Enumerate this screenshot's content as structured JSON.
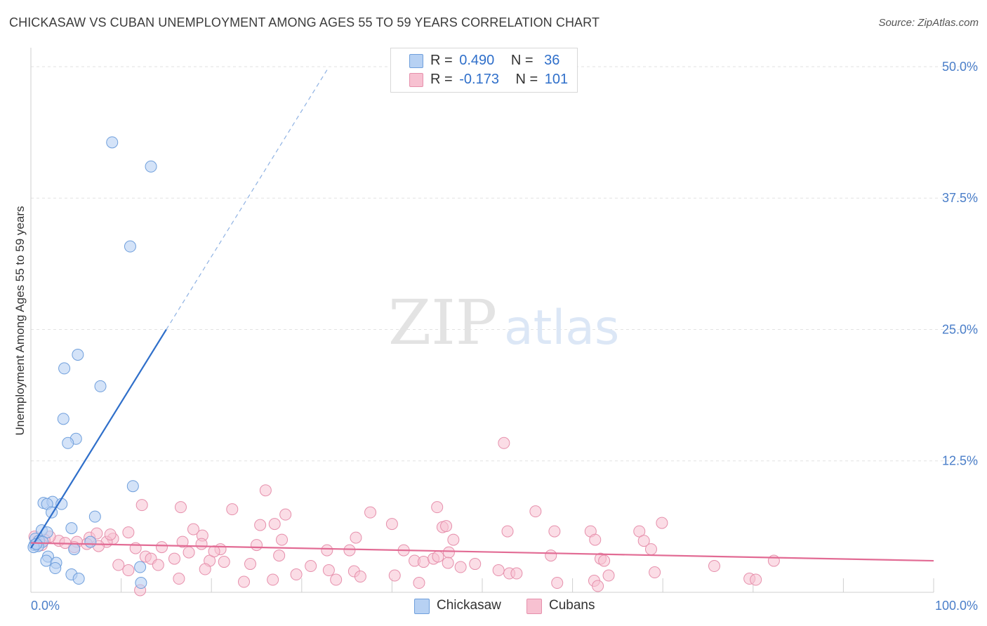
{
  "title": "CHICKASAW VS CUBAN UNEMPLOYMENT AMONG AGES 55 TO 59 YEARS CORRELATION CHART",
  "source": "Source: ZipAtlas.com",
  "watermark": {
    "zip": "ZIP",
    "atlas": "atlas"
  },
  "legend": {
    "rows": [
      {
        "r_label": "R =",
        "r_value": "0.490",
        "n_label": "N =",
        "n_value": "36"
      },
      {
        "r_label": "R =",
        "r_value": "-0.173",
        "n_label": "N =",
        "n_value": "101"
      }
    ]
  },
  "bottom_legend": [
    "Chickasaw",
    "Cubans"
  ],
  "colors": {
    "chickasaw_fill": "#b7d1f3",
    "chickasaw_stroke": "#6f9fdc",
    "chickasaw_line": "#2f6fca",
    "cubans_fill": "#f7c1d1",
    "cubans_stroke": "#e690ac",
    "cubans_line": "#e26b94",
    "grid": "#e2e2e2",
    "axis_label": "#4a7ec9"
  },
  "chart_data": {
    "type": "scatter",
    "title": "CHICKASAW VS CUBAN UNEMPLOYMENT AMONG AGES 55 TO 59 YEARS CORRELATION CHART",
    "xlabel": "",
    "ylabel": "Unemployment Among Ages 55 to 59 years",
    "xlim": [
      0,
      100
    ],
    "ylim": [
      0,
      51
    ],
    "x_tick_labels": [
      {
        "value": 0,
        "label": "0.0%"
      },
      {
        "value": 100,
        "label": "100.0%"
      }
    ],
    "y_tick_labels": [
      {
        "value": 12.5,
        "label": "12.5%"
      },
      {
        "value": 25,
        "label": "25.0%"
      },
      {
        "value": 37.5,
        "label": "37.5%"
      },
      {
        "value": 50,
        "label": "50.0%"
      }
    ],
    "series": [
      {
        "name": "Chickasaw",
        "R": 0.49,
        "N": 36,
        "trend": {
          "x0": 0,
          "y0": 4.2,
          "x_solid_end": 15,
          "x_dash_end": 33
        },
        "points": [
          [
            9,
            42.8
          ],
          [
            13.3,
            40.5
          ],
          [
            11,
            32.9
          ],
          [
            5.2,
            22.6
          ],
          [
            3.7,
            21.3
          ],
          [
            7.7,
            19.6
          ],
          [
            3.6,
            16.5
          ],
          [
            5,
            14.6
          ],
          [
            4.1,
            14.2
          ],
          [
            11.3,
            10.1
          ],
          [
            1.4,
            8.5
          ],
          [
            2.4,
            8.6
          ],
          [
            1.8,
            8.4
          ],
          [
            3.4,
            8.4
          ],
          [
            2.3,
            7.6
          ],
          [
            7.1,
            7.2
          ],
          [
            4.5,
            6.1
          ],
          [
            1.2,
            5.9
          ],
          [
            1.8,
            5.7
          ],
          [
            0.5,
            5.1
          ],
          [
            0.9,
            4.9
          ],
          [
            1.3,
            4.8
          ],
          [
            0.4,
            4.5
          ],
          [
            0.8,
            4.4
          ],
          [
            0.3,
            4.3
          ],
          [
            6.6,
            4.8
          ],
          [
            4.8,
            4.1
          ],
          [
            1.9,
            3.4
          ],
          [
            1.7,
            3.0
          ],
          [
            2.8,
            2.8
          ],
          [
            2.7,
            2.3
          ],
          [
            12.1,
            2.4
          ],
          [
            4.5,
            1.7
          ],
          [
            5.3,
            1.3
          ],
          [
            12.2,
            0.9
          ],
          [
            0.6,
            4.6
          ]
        ]
      },
      {
        "name": "Cubans",
        "R": -0.173,
        "N": 101,
        "trend": {
          "x0": 0,
          "y0": 4.7,
          "x1": 100,
          "y1": 3.0
        },
        "points": [
          [
            52.4,
            14.2
          ],
          [
            26,
            9.7
          ],
          [
            12.3,
            8.3
          ],
          [
            16.6,
            8.1
          ],
          [
            22.3,
            7.9
          ],
          [
            37.6,
            7.6
          ],
          [
            45,
            8.1
          ],
          [
            55.9,
            7.7
          ],
          [
            28.2,
            7.4
          ],
          [
            40,
            6.5
          ],
          [
            25.4,
            6.4
          ],
          [
            27,
            6.5
          ],
          [
            45.6,
            6.2
          ],
          [
            18,
            6.0
          ],
          [
            19,
            5.4
          ],
          [
            10.8,
            5.7
          ],
          [
            52.8,
            5.8
          ],
          [
            58,
            5.8
          ],
          [
            62,
            5.8
          ],
          [
            67.4,
            5.8
          ],
          [
            69.9,
            6.6
          ],
          [
            46,
            6.3
          ],
          [
            46.8,
            5.0
          ],
          [
            36,
            5.2
          ],
          [
            27.8,
            5.0
          ],
          [
            16.8,
            4.8
          ],
          [
            18.9,
            4.6
          ],
          [
            25,
            4.5
          ],
          [
            9.1,
            5.1
          ],
          [
            8.4,
            4.8
          ],
          [
            6.5,
            5.2
          ],
          [
            7.5,
            4.4
          ],
          [
            6.2,
            4.6
          ],
          [
            5.1,
            4.8
          ],
          [
            3.1,
            4.9
          ],
          [
            2.1,
            5.3
          ],
          [
            1.5,
            5.0
          ],
          [
            0.8,
            4.9
          ],
          [
            0.4,
            5.3
          ],
          [
            1.2,
            4.5
          ],
          [
            4.8,
            4.3
          ],
          [
            3.8,
            4.7
          ],
          [
            11.6,
            4.2
          ],
          [
            14.5,
            4.3
          ],
          [
            17.5,
            3.8
          ],
          [
            21,
            4.1
          ],
          [
            27.5,
            3.5
          ],
          [
            32.8,
            4.0
          ],
          [
            35.3,
            4.0
          ],
          [
            41.3,
            4.0
          ],
          [
            46.3,
            3.8
          ],
          [
            57.6,
            3.5
          ],
          [
            63.1,
            3.2
          ],
          [
            68.7,
            4.1
          ],
          [
            62.5,
            5.0
          ],
          [
            67.9,
            4.9
          ],
          [
            7.3,
            5.6
          ],
          [
            8.8,
            5.5
          ],
          [
            12.7,
            3.4
          ],
          [
            13.3,
            3.2
          ],
          [
            15.9,
            3.2
          ],
          [
            19.8,
            3.0
          ],
          [
            21.4,
            2.9
          ],
          [
            24.3,
            2.7
          ],
          [
            31,
            2.5
          ],
          [
            33,
            2.1
          ],
          [
            35.8,
            2.0
          ],
          [
            40.3,
            1.6
          ],
          [
            42.5,
            3.0
          ],
          [
            43.5,
            2.9
          ],
          [
            44.6,
            3.2
          ],
          [
            45.1,
            3.4
          ],
          [
            46.2,
            2.8
          ],
          [
            47.6,
            2.4
          ],
          [
            49.2,
            2.7
          ],
          [
            51.8,
            2.1
          ],
          [
            53,
            1.8
          ],
          [
            53.8,
            1.8
          ],
          [
            63.5,
            3.0
          ],
          [
            64,
            1.6
          ],
          [
            58.3,
            0.9
          ],
          [
            62.4,
            1.1
          ],
          [
            62.8,
            0.6
          ],
          [
            69.1,
            1.9
          ],
          [
            75.7,
            2.5
          ],
          [
            79.6,
            1.3
          ],
          [
            80.3,
            1.2
          ],
          [
            82.3,
            3.0
          ],
          [
            9.7,
            2.6
          ],
          [
            10.8,
            2.1
          ],
          [
            14.1,
            2.6
          ],
          [
            19.3,
            2.2
          ],
          [
            23.6,
            1.0
          ],
          [
            26.8,
            1.2
          ],
          [
            29.4,
            1.7
          ],
          [
            33.8,
            1.2
          ],
          [
            36.5,
            1.5
          ],
          [
            43,
            0.9
          ],
          [
            20.3,
            3.9
          ],
          [
            16.4,
            1.3
          ],
          [
            12.1,
            0.2
          ]
        ]
      }
    ]
  }
}
